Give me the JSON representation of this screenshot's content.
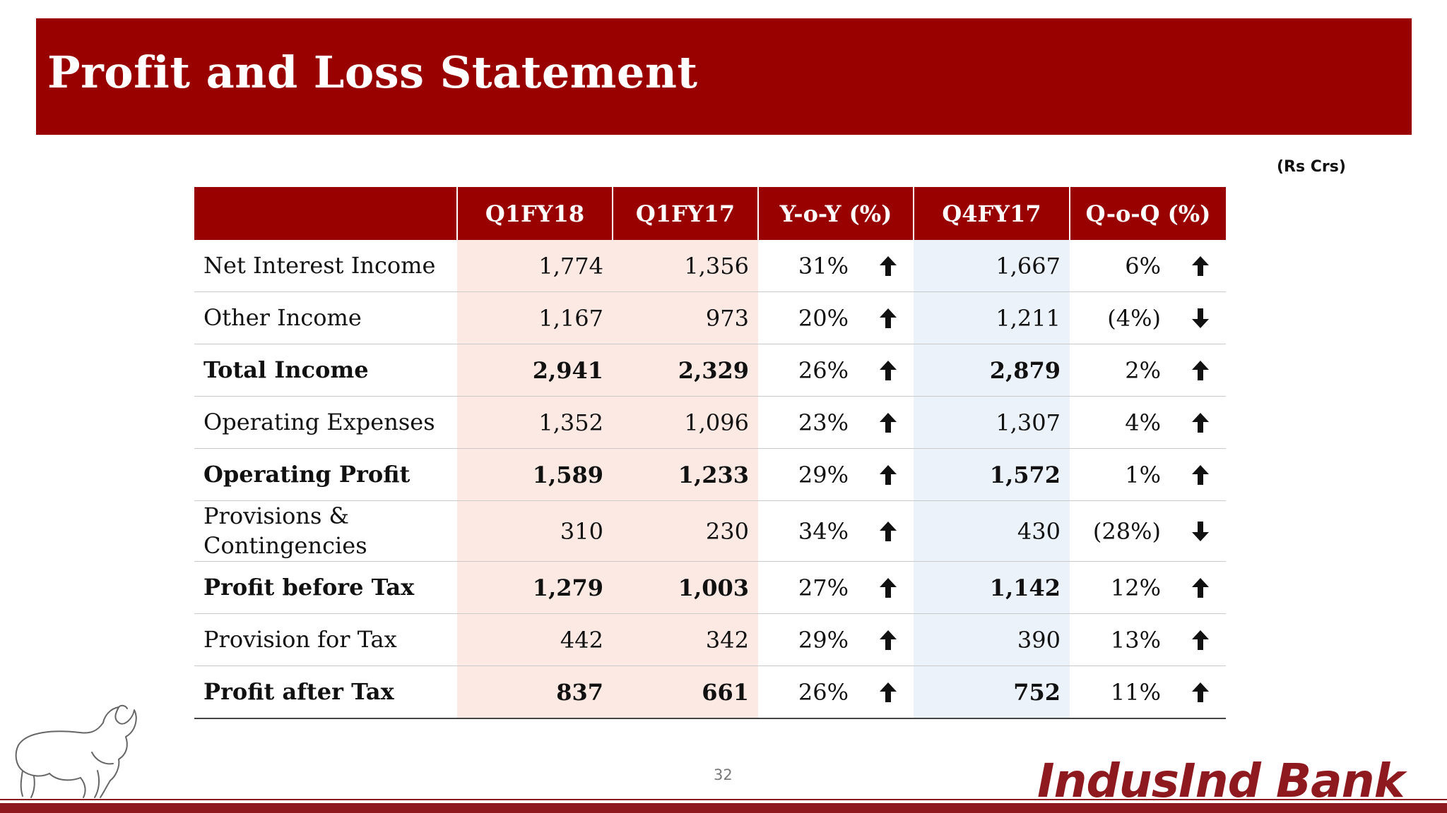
{
  "slide": {
    "title": "Profit and Loss Statement",
    "unit_note": "(Rs Crs)",
    "page_number": "32"
  },
  "brand": {
    "logo_text": "IndusInd Bank",
    "accent_color": "#990000",
    "logo_color": "#8e1a1f",
    "emblem_icon": "bull-emblem-icon"
  },
  "table": {
    "columns": [
      "",
      "Q1FY18",
      "Q1FY17",
      "Y-o-Y (%)",
      "Q4FY17",
      "Q-o-Q (%)"
    ],
    "rows": [
      {
        "label": "Net Interest Income",
        "q1fy18": "1,774",
        "q1fy17": "1,356",
        "yoy": "31%",
        "yoy_dir": "up",
        "q4fy17": "1,667",
        "qoq": "6%",
        "qoq_dir": "up",
        "bold": false
      },
      {
        "label": "Other Income",
        "q1fy18": "1,167",
        "q1fy17": "973",
        "yoy": "20%",
        "yoy_dir": "up",
        "q4fy17": "1,211",
        "qoq": "(4%)",
        "qoq_dir": "down",
        "bold": false
      },
      {
        "label": "Total Income",
        "q1fy18": "2,941",
        "q1fy17": "2,329",
        "yoy": "26%",
        "yoy_dir": "up",
        "q4fy17": "2,879",
        "qoq": "2%",
        "qoq_dir": "up",
        "bold": true
      },
      {
        "label": "Operating Expenses",
        "q1fy18": "1,352",
        "q1fy17": "1,096",
        "yoy": "23%",
        "yoy_dir": "up",
        "q4fy17": "1,307",
        "qoq": "4%",
        "qoq_dir": "up",
        "bold": false
      },
      {
        "label": "Operating Profit",
        "q1fy18": "1,589",
        "q1fy17": "1,233",
        "yoy": "29%",
        "yoy_dir": "up",
        "q4fy17": "1,572",
        "qoq": "1%",
        "qoq_dir": "up",
        "bold": true
      },
      {
        "label_line1": "Provisions &",
        "label_line2": "Contingencies",
        "q1fy18": "310",
        "q1fy17": "230",
        "yoy": "34%",
        "yoy_dir": "up",
        "q4fy17": "430",
        "qoq": "(28%)",
        "qoq_dir": "down",
        "bold": false
      },
      {
        "label": "Profit before Tax",
        "q1fy18": "1,279",
        "q1fy17": "1,003",
        "yoy": "27%",
        "yoy_dir": "up",
        "q4fy17": "1,142",
        "qoq": "12%",
        "qoq_dir": "up",
        "bold": true
      },
      {
        "label": "Provision for Tax",
        "q1fy18": "442",
        "q1fy17": "342",
        "yoy": "29%",
        "yoy_dir": "up",
        "q4fy17": "390",
        "qoq": "13%",
        "qoq_dir": "up",
        "bold": false
      },
      {
        "label": "Profit after Tax",
        "q1fy18": "837",
        "q1fy17": "661",
        "yoy": "26%",
        "yoy_dir": "up",
        "q4fy17": "752",
        "qoq": "11%",
        "qoq_dir": "up",
        "bold": true
      }
    ]
  }
}
